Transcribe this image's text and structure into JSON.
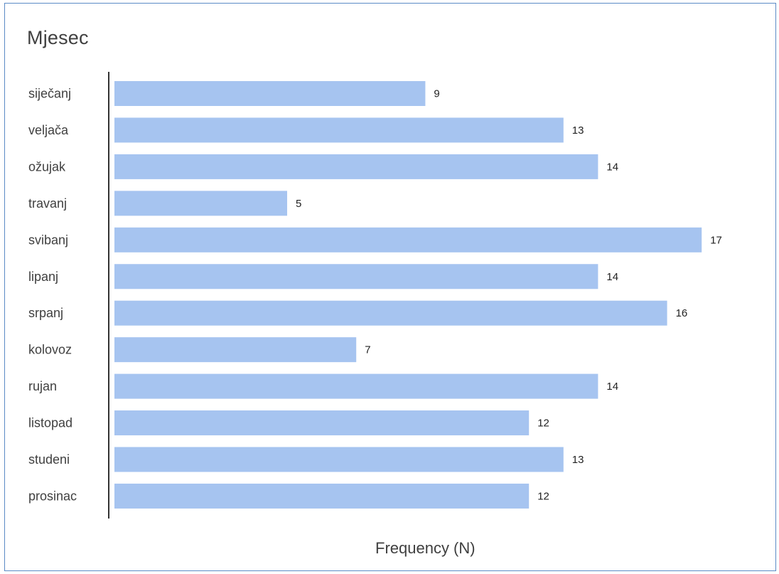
{
  "chart_data": {
    "type": "bar",
    "orientation": "horizontal",
    "title": "Mjesec",
    "xlabel": "Frequency (N)",
    "ylabel": "",
    "categories": [
      "siječanj",
      "veljača",
      "ožujak",
      "travanj",
      "svibanj",
      "lipanj",
      "srpanj",
      "kolovoz",
      "rujan",
      "listopad",
      "studeni",
      "prosinac"
    ],
    "values": [
      9,
      13,
      14,
      5,
      17,
      14,
      16,
      7,
      14,
      12,
      13,
      12
    ],
    "data_labels": true,
    "grid": false,
    "legend": "none",
    "bar_color": "#a6c4f0",
    "axis_color": "#333333"
  }
}
